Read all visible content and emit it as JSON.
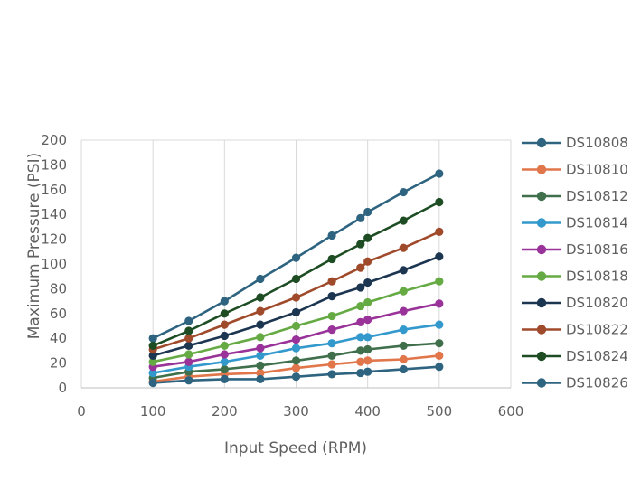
{
  "chart_data": {
    "type": "line",
    "title": "",
    "xlabel": "Input Speed (RPM)",
    "ylabel": "Maximum Pressure (PSI)",
    "xlim": [
      0,
      600
    ],
    "ylim": [
      0,
      200
    ],
    "xticks": [
      0,
      100,
      200,
      300,
      400,
      500,
      600
    ],
    "yticks": [
      0,
      20,
      40,
      60,
      80,
      100,
      120,
      140,
      160,
      180,
      200
    ],
    "grid": "vertical",
    "legend_position": "right",
    "x": [
      100,
      150,
      200,
      250,
      300,
      350,
      390,
      400,
      450,
      500
    ],
    "series": [
      {
        "name": "DS10808",
        "color": "#2e6480",
        "values": [
          40,
          54,
          70,
          88,
          105,
          123,
          137,
          142,
          158,
          173
        ]
      },
      {
        "name": "DS10810",
        "color": "#e0764a",
        "values": [
          5,
          9,
          11,
          12,
          16,
          19,
          21,
          22,
          23,
          26
        ]
      },
      {
        "name": "DS10812",
        "color": "#3f6f4b",
        "values": [
          8,
          13,
          15,
          18,
          22,
          26,
          30,
          31,
          34,
          36
        ]
      },
      {
        "name": "DS10814",
        "color": "#3399cc",
        "values": [
          12,
          17,
          21,
          26,
          32,
          36,
          41,
          41,
          47,
          51
        ]
      },
      {
        "name": "DS10816",
        "color": "#993399",
        "values": [
          17,
          21,
          27,
          32,
          39,
          47,
          53,
          55,
          62,
          68
        ]
      },
      {
        "name": "DS10818",
        "color": "#66aa44",
        "values": [
          21,
          27,
          34,
          41,
          50,
          58,
          66,
          69,
          78,
          86
        ]
      },
      {
        "name": "DS10820",
        "color": "#1c3550",
        "values": [
          26,
          34,
          42,
          51,
          61,
          74,
          81,
          85,
          95,
          106
        ]
      },
      {
        "name": "DS10822",
        "color": "#a04a2c",
        "values": [
          31,
          40,
          51,
          62,
          73,
          86,
          97,
          102,
          113,
          126
        ]
      },
      {
        "name": "DS10824",
        "color": "#1e4d24",
        "values": [
          34,
          46,
          60,
          73,
          88,
          104,
          116,
          121,
          135,
          150
        ]
      },
      {
        "name": "DS10826",
        "color": "#2e6480",
        "values": [
          4,
          6,
          7,
          7,
          9,
          11,
          12,
          13,
          15,
          17
        ]
      }
    ]
  }
}
